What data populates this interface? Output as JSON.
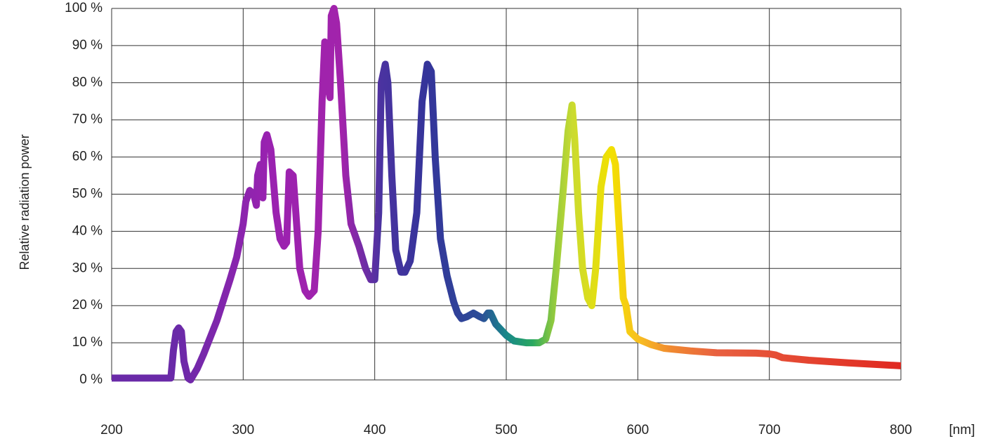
{
  "chart_data": {
    "type": "line",
    "y_label": "Relative radiation power",
    "x_label": "[nm]",
    "x": [
      200,
      245,
      247,
      249,
      251,
      253,
      255,
      258,
      260,
      265,
      270,
      280,
      290,
      295,
      300,
      302,
      305,
      308,
      310,
      311,
      313,
      315,
      316,
      318,
      321,
      325,
      328,
      331,
      333,
      335,
      338,
      340,
      343,
      347,
      350,
      354,
      357,
      360,
      362,
      364,
      365,
      366,
      367,
      369,
      371,
      374,
      378,
      382,
      388,
      393,
      397,
      400,
      403,
      405,
      408,
      410,
      413,
      416,
      420,
      423,
      427,
      432,
      436,
      440,
      443,
      446,
      450,
      455,
      460,
      463,
      466,
      470,
      475,
      480,
      483,
      486,
      488,
      492,
      500,
      506,
      515,
      525,
      530,
      534,
      538,
      543,
      547,
      550,
      552,
      555,
      558,
      562,
      565,
      568,
      572,
      576,
      580,
      583,
      586,
      589,
      591,
      594,
      600,
      610,
      620,
      640,
      660,
      690,
      700,
      705,
      710,
      730,
      760,
      800
    ],
    "values": [
      0.5,
      0.5,
      8,
      13,
      14,
      13,
      5,
      0.5,
      0,
      3,
      7,
      16,
      27,
      33,
      42,
      48,
      51,
      50,
      47,
      55,
      58,
      49,
      64,
      66,
      62,
      45,
      38,
      36,
      37,
      56,
      55,
      45,
      30,
      24,
      22.5,
      24,
      40,
      75,
      91,
      90,
      78,
      76,
      98,
      100,
      96,
      80,
      55,
      42,
      36,
      30,
      27,
      27,
      45,
      80,
      85,
      80,
      55,
      35,
      29,
      29,
      32,
      45,
      75,
      85,
      83,
      60,
      38,
      28,
      21,
      18,
      16.5,
      17,
      18,
      17,
      16.5,
      18,
      18,
      15,
      12,
      10.5,
      10,
      10,
      11,
      16,
      30,
      50,
      67,
      74,
      65,
      45,
      30,
      22,
      20,
      30,
      52,
      60,
      62,
      58,
      40,
      22,
      20,
      13,
      11,
      9.5,
      8.5,
      7.8,
      7.3,
      7.2,
      7,
      6.7,
      6,
      5.3,
      4.6,
      3.8
    ],
    "line_colors": [
      {
        "at": 250,
        "color": "#6a2aa8"
      },
      {
        "at": 320,
        "color": "#9a22b0"
      },
      {
        "at": 375,
        "color": "#a223ab"
      },
      {
        "at": 405,
        "color": "#4a33a0"
      },
      {
        "at": 440,
        "color": "#34349a"
      },
      {
        "at": 480,
        "color": "#2c4c98"
      },
      {
        "at": 500,
        "color": "#18888a"
      },
      {
        "at": 520,
        "color": "#2aa860"
      },
      {
        "at": 535,
        "color": "#8cc840"
      },
      {
        "at": 550,
        "color": "#cadb30"
      },
      {
        "at": 580,
        "color": "#f2e000"
      },
      {
        "at": 600,
        "color": "#f8c020"
      },
      {
        "at": 625,
        "color": "#f08a30"
      },
      {
        "at": 660,
        "color": "#e86040"
      },
      {
        "at": 800,
        "color": "#e02820"
      }
    ],
    "xlim": [
      200,
      800
    ],
    "ylim": [
      0,
      100
    ],
    "xticks": [
      200,
      300,
      400,
      500,
      600,
      700,
      800
    ],
    "yticks": [
      {
        "value": 0,
        "label": "0 %"
      },
      {
        "value": 10,
        "label": "10 %"
      },
      {
        "value": 20,
        "label": "20 %"
      },
      {
        "value": 30,
        "label": "30 %"
      },
      {
        "value": 40,
        "label": "40 %"
      },
      {
        "value": 50,
        "label": "50 %"
      },
      {
        "value": 60,
        "label": "60 %"
      },
      {
        "value": 70,
        "label": "70 %"
      },
      {
        "value": 80,
        "label": "80 %"
      },
      {
        "value": 90,
        "label": "90 %"
      },
      {
        "value": 100,
        "label": "100 %"
      }
    ],
    "grid": true
  }
}
